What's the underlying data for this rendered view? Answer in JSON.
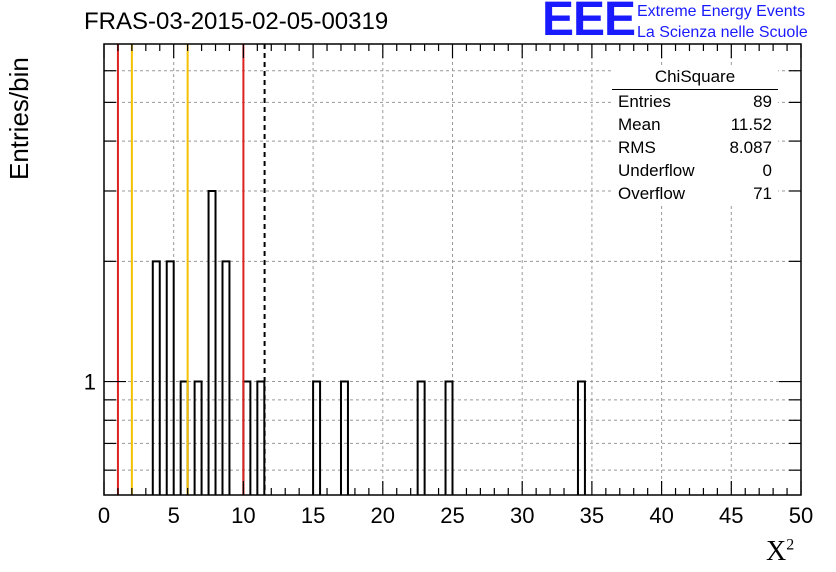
{
  "header": {
    "title": "FRAS-03-2015-02-05-00319",
    "logo_text": "EEE",
    "logo_line1": "Extreme Energy Events",
    "logo_line2": "La Scienza nelle Scuole"
  },
  "stats": {
    "title": "ChiSquare",
    "rows": [
      {
        "label": "Entries",
        "value": "89"
      },
      {
        "label": "Mean",
        "value": "11.52"
      },
      {
        "label": "RMS",
        "value": "8.087"
      },
      {
        "label": "Underflow",
        "value": "0"
      },
      {
        "label": "Overflow",
        "value": "71"
      }
    ]
  },
  "colors": {
    "bars": "#000000",
    "red_lines": "#dd2222",
    "yellow_lines": "#f5c000",
    "logo": "#1a1aff",
    "grid": "#999999"
  },
  "chart_data": {
    "type": "bar",
    "title": "FRAS-03-2015-02-05-00319",
    "xlabel": "X",
    "xlabel_superscript": "2",
    "ylabel": "Entries/bin",
    "xlim": [
      0,
      50
    ],
    "yscale": "log",
    "y_tick_labels": [
      "1"
    ],
    "x_tick_labels": [
      "0",
      "5",
      "10",
      "15",
      "20",
      "25",
      "30",
      "35",
      "40",
      "45",
      "50"
    ],
    "grid": true,
    "bin_width": 0.5,
    "bins": [
      {
        "x": 3.5,
        "count": 2
      },
      {
        "x": 4.5,
        "count": 2
      },
      {
        "x": 5.5,
        "count": 1
      },
      {
        "x": 6.5,
        "count": 1
      },
      {
        "x": 7.5,
        "count": 3
      },
      {
        "x": 8.5,
        "count": 2
      },
      {
        "x": 10.0,
        "count": 1
      },
      {
        "x": 11.0,
        "count": 1
      },
      {
        "x": 15.0,
        "count": 1
      },
      {
        "x": 17.0,
        "count": 1
      },
      {
        "x": 22.5,
        "count": 1
      },
      {
        "x": 24.5,
        "count": 1
      },
      {
        "x": 34.0,
        "count": 1
      }
    ],
    "vertical_lines": [
      {
        "x": 1.0,
        "color": "red"
      },
      {
        "x": 2.0,
        "color": "yellow"
      },
      {
        "x": 6.0,
        "color": "yellow"
      },
      {
        "x": 10.0,
        "color": "red"
      },
      {
        "x": 11.52,
        "color": "black",
        "style": "dashed"
      }
    ]
  }
}
